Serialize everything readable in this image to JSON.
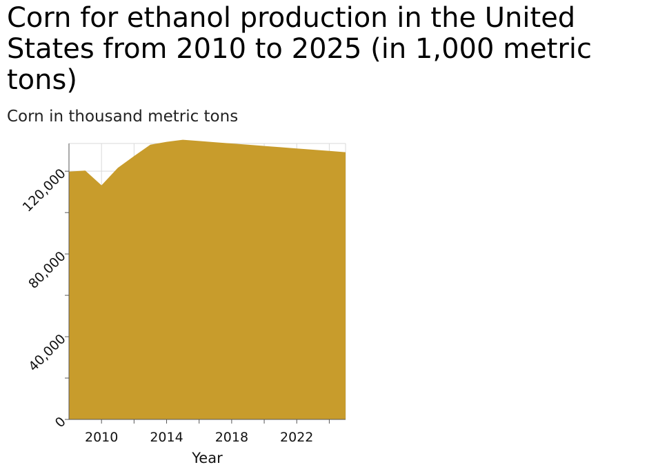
{
  "chart_data": {
    "type": "area",
    "title": "Corn for ethanol production in the United States from 2010 to 2025 (in 1,000 metric tons)",
    "subtitle": "Corn in thousand metric tons",
    "xlabel": "Year",
    "ylabel": "",
    "x": [
      2008,
      2009,
      2010,
      2011,
      2012,
      2013,
      2014,
      2015,
      2016,
      2017,
      2018,
      2019,
      2020,
      2021,
      2022,
      2023,
      2024,
      2025
    ],
    "series": [
      {
        "values": [
          119800,
          120300,
          113200,
          121600,
          127300,
          132800,
          134200,
          135200,
          134600,
          134000,
          133400,
          132800,
          132200,
          131600,
          131000,
          130400,
          129800,
          129200
        ]
      }
    ],
    "xlim": [
      2008,
      2025
    ],
    "ylim": [
      0,
      133400
    ],
    "x_ticks": [
      2010,
      2014,
      2018,
      2022
    ],
    "y_ticks": [
      0,
      40000,
      80000,
      120000
    ],
    "x_tick_labels": [
      "2010",
      "2014",
      "2018",
      "2022"
    ],
    "y_tick_labels": [
      "0",
      "40,000",
      "80,000",
      "120,000"
    ],
    "grid": true,
    "colors": {
      "area": "#c89c2c",
      "grid": "#d9d9d9",
      "axis": "#555555"
    }
  }
}
